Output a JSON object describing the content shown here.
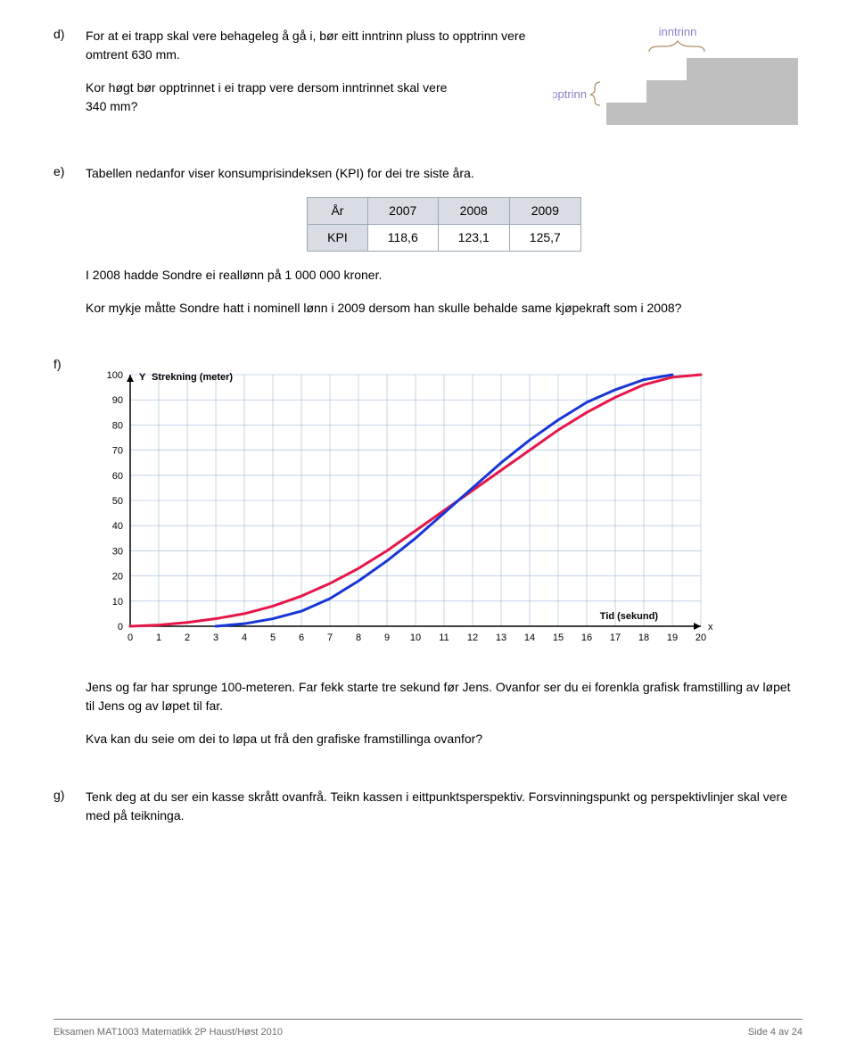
{
  "d": {
    "label": "d)",
    "p1": "For at ei trapp skal vere behageleg å gå i, bør eitt inntrinn pluss to opptrinn vere omtrent 630 mm.",
    "p2": "Kor høgt bør opptrinnet i ei trapp vere dersom inntrinnet skal vere",
    "p3": "340 mm?",
    "stair": {
      "label_inntrinn": "inntrinn",
      "label_opptrinn": "opptrinn",
      "fill": "#bfbfbf",
      "label_color": "#8b7fc7",
      "bracket_color": "#a88c5c"
    }
  },
  "e": {
    "label": "e)",
    "p1": "Tabellen nedanfor viser konsumprisindeksen (KPI) for dei tre siste åra.",
    "table": {
      "header_row": [
        "År",
        "2007",
        "2008",
        "2009"
      ],
      "data_row": [
        "KPI",
        "118,6",
        "123,1",
        "125,7"
      ],
      "header_bg": "#d9dde3",
      "border_color": "#9aa8b5"
    },
    "p2": "I 2008 hadde Sondre ei reallønn på 1 000 000 kroner.",
    "p3": "Kor mykje måtte Sondre hatt i nominell lønn i 2009 dersom han skulle behalde same kjøpekraft som i 2008?"
  },
  "f": {
    "label": "f)",
    "chart": {
      "type": "line",
      "y_label": "Y",
      "y_title": "Strekning (meter)",
      "x_title": "Tid (sekund)",
      "x_right": "x",
      "xlim": [
        0,
        20
      ],
      "ylim": [
        0,
        100
      ],
      "xticks": [
        0,
        1,
        2,
        3,
        4,
        5,
        6,
        7,
        8,
        9,
        10,
        11,
        12,
        13,
        14,
        15,
        16,
        17,
        18,
        19,
        20
      ],
      "yticks": [
        0,
        10,
        20,
        30,
        40,
        50,
        60,
        70,
        80,
        90,
        100
      ],
      "grid_color": "#9fb8d4",
      "axis_color": "#000000",
      "background_color": "#ffffff",
      "font_size": 11,
      "title_bold": true,
      "series": [
        {
          "name": "red",
          "color": "#e6174a",
          "width": 3,
          "points": [
            [
              0,
              0
            ],
            [
              1,
              0.5
            ],
            [
              2,
              1.5
            ],
            [
              3,
              3
            ],
            [
              4,
              5
            ],
            [
              5,
              8
            ],
            [
              6,
              12
            ],
            [
              7,
              17
            ],
            [
              8,
              23
            ],
            [
              9,
              30
            ],
            [
              10,
              38
            ],
            [
              11,
              46
            ],
            [
              12,
              54
            ],
            [
              13,
              62
            ],
            [
              14,
              70
            ],
            [
              15,
              78
            ],
            [
              16,
              85
            ],
            [
              17,
              91
            ],
            [
              18,
              96
            ],
            [
              19,
              99
            ],
            [
              20,
              100
            ]
          ]
        },
        {
          "name": "blue",
          "color": "#1736d6",
          "width": 3,
          "points": [
            [
              3,
              0
            ],
            [
              4,
              1
            ],
            [
              5,
              3
            ],
            [
              6,
              6
            ],
            [
              7,
              11
            ],
            [
              8,
              18
            ],
            [
              9,
              26
            ],
            [
              10,
              35
            ],
            [
              11,
              45
            ],
            [
              12,
              55
            ],
            [
              13,
              65
            ],
            [
              14,
              74
            ],
            [
              15,
              82
            ],
            [
              16,
              89
            ],
            [
              17,
              94
            ],
            [
              18,
              98
            ],
            [
              19,
              100
            ]
          ]
        }
      ]
    },
    "p1": "Jens og far har sprunge 100-meteren. Far fekk starte tre sekund før Jens. Ovanfor ser du ei forenkla grafisk framstilling av løpet til Jens og av løpet til far.",
    "p2": "Kva kan du seie om dei to løpa ut frå den grafiske framstillinga ovanfor?"
  },
  "g": {
    "label": "g)",
    "p1": "Tenk deg at du ser ein kasse skrått ovanfrå. Teikn kassen i eittpunktsperspektiv. Forsvinningspunkt og perspektivlinjer skal vere med på teikninga."
  },
  "footer": {
    "left": "Eksamen MAT1003 Matematikk 2P  Haust/Høst 2010",
    "right": "Side 4 av 24"
  }
}
